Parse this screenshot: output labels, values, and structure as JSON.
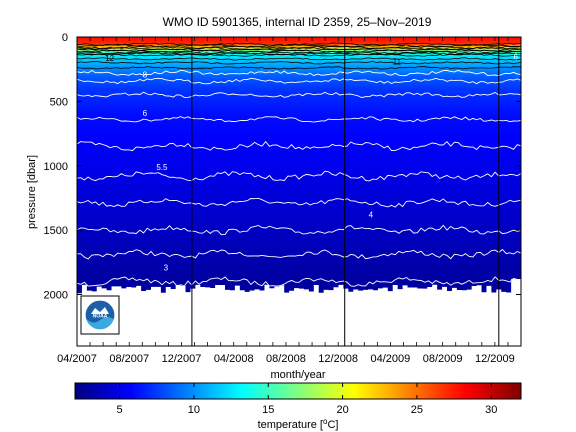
{
  "chart_data": {
    "type": "heatmap",
    "title": "WMO ID 5901365, internal ID 2359, 25–Nov–2019",
    "xlabel": "month/year",
    "ylabel": "pressure [dbar]",
    "x_tick_labels": [
      "04/2007",
      "08/2007",
      "12/2007",
      "04/2008",
      "08/2008",
      "12/2008",
      "04/2009",
      "08/2009",
      "12/2009"
    ],
    "x_range_months": [
      0,
      34
    ],
    "x_tick_positions_months": [
      0,
      4,
      8,
      12,
      16,
      20,
      24,
      28,
      32
    ],
    "year_boundaries_months": [
      8.8,
      20.5,
      32.3
    ],
    "ylim": [
      0,
      2400
    ],
    "y_reversed": true,
    "y_ticks": [
      0,
      500,
      1000,
      1500,
      2000
    ],
    "colorbar": {
      "label_prefix": "temperature [",
      "label_unit_super": "o",
      "label_unit_suffix": "C]",
      "range": [
        2,
        32
      ],
      "ticks": [
        5,
        10,
        15,
        20,
        25,
        30
      ],
      "colormap": "jet"
    },
    "contour_levels": [
      3,
      3.5,
      4,
      4.5,
      5,
      5.5,
      6,
      7,
      8,
      9,
      10,
      11,
      12,
      13,
      14,
      15,
      16,
      18,
      20,
      22,
      24,
      26
    ],
    "contour_labels": [
      {
        "text": "12",
        "month": 2.5,
        "pressure": 165
      },
      {
        "text": "11",
        "month": 24.5,
        "pressure": 190
      },
      {
        "text": "6",
        "month": 33.6,
        "pressure": 150
      },
      {
        "text": "8",
        "month": 5.2,
        "pressure": 290
      },
      {
        "text": "6",
        "month": 5.2,
        "pressure": 590
      },
      {
        "text": "5.5",
        "month": 6.5,
        "pressure": 1010
      },
      {
        "text": "4",
        "month": 22.5,
        "pressure": 1380
      },
      {
        "text": "3",
        "month": 6.8,
        "pressure": 1790
      }
    ],
    "temperature_profile": [
      {
        "pressure": 0,
        "temp": 28
      },
      {
        "pressure": 50,
        "temp": 27
      },
      {
        "pressure": 80,
        "temp": 22
      },
      {
        "pressure": 110,
        "temp": 16
      },
      {
        "pressure": 140,
        "temp": 13
      },
      {
        "pressure": 200,
        "temp": 11
      },
      {
        "pressure": 300,
        "temp": 8.5
      },
      {
        "pressure": 400,
        "temp": 7.3
      },
      {
        "pressure": 600,
        "temp": 6.1
      },
      {
        "pressure": 800,
        "temp": 5.6
      },
      {
        "pressure": 1000,
        "temp": 5.2
      },
      {
        "pressure": 1200,
        "temp": 4.7
      },
      {
        "pressure": 1500,
        "temp": 4.0
      },
      {
        "pressure": 1800,
        "temp": 3.2
      },
      {
        "pressure": 2000,
        "temp": 2.8
      }
    ],
    "max_depth_profile_dbar": 1990,
    "grid": false,
    "logo": "NOAA"
  }
}
